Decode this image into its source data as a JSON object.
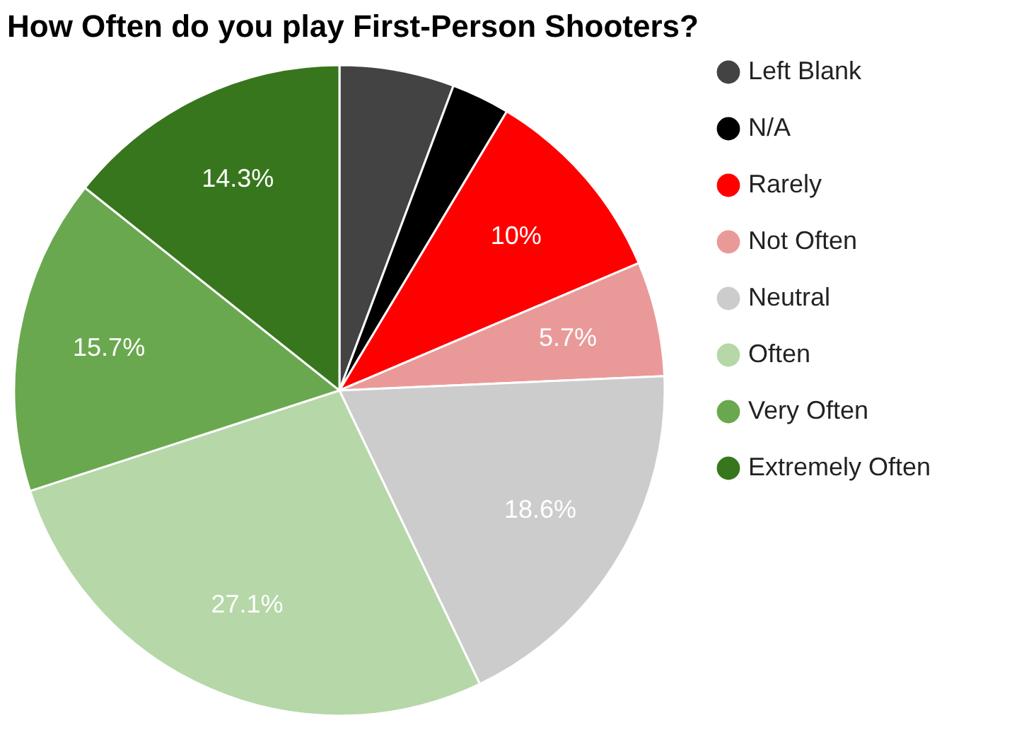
{
  "chart_data": {
    "type": "pie",
    "title": "How Often do you play First-Person Shooters?",
    "categories": [
      "Left Blank",
      "N/A",
      "Rarely",
      "Not Often",
      "Neutral",
      "Often",
      "Very Often",
      "Extremely Often"
    ],
    "values": [
      5.7,
      2.9,
      10,
      5.7,
      18.6,
      27.1,
      15.7,
      14.3
    ],
    "value_labels": [
      null,
      null,
      "10%",
      "5.7%",
      "18.6%",
      "27.1%",
      "15.7%",
      "14.3%"
    ],
    "colors": [
      "#434343",
      "#000000",
      "#ff0000",
      "#ea9999",
      "#cccccc",
      "#b6d7a8",
      "#6aa84f",
      "#38761d"
    ],
    "legend": "right"
  }
}
